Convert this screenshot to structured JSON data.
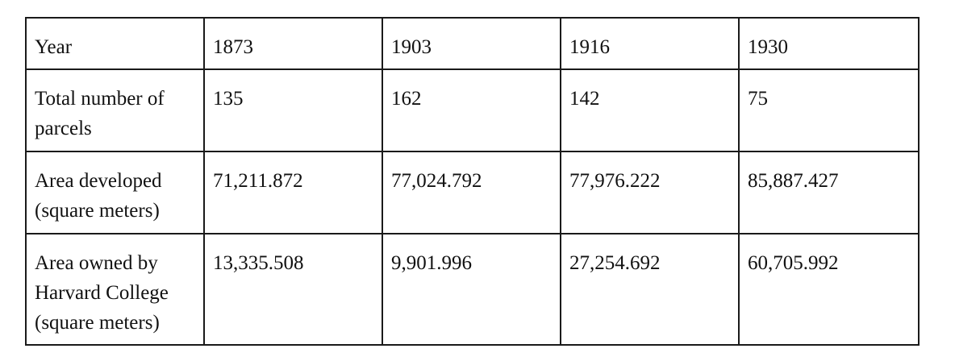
{
  "table": {
    "rows": [
      {
        "label": "Year",
        "cells": [
          "1873",
          "1903",
          "1916",
          "1930"
        ]
      },
      {
        "label": "Total number of parcels",
        "cells": [
          "135",
          "162",
          "142",
          "75"
        ]
      },
      {
        "label": "Area developed (square meters)",
        "cells": [
          "71,211.872",
          "77,024.792",
          "77,976.222",
          "85,887.427"
        ]
      },
      {
        "label": "Area owned by Harvard College (square meters)",
        "cells": [
          "13,335.508",
          "9,901.996",
          "27,254.692",
          "60,705.992"
        ]
      }
    ]
  }
}
